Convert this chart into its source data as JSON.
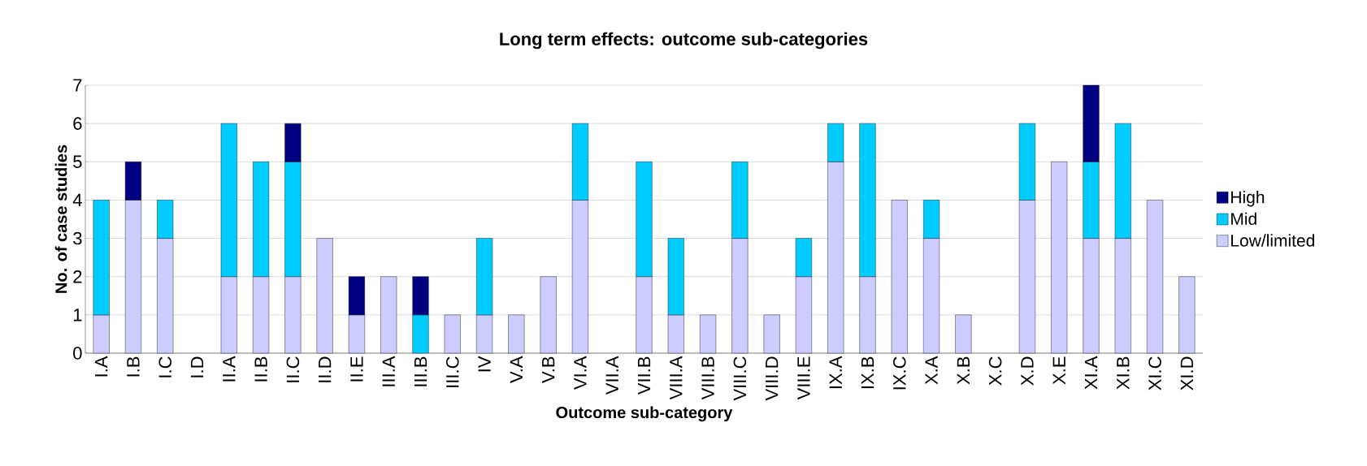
{
  "chart_data": {
    "type": "bar",
    "stacked": true,
    "title": "Long term effects: outcome sub-categories",
    "xlabel": "Outcome sub-category",
    "ylabel": "No. of case studies",
    "categories": [
      "I.A",
      "I.B",
      "I.C",
      "I.D",
      "II.A",
      "II.B",
      "II.C",
      "II.D",
      "II.E",
      "III.A",
      "III.B",
      "III.C",
      "IV",
      "V.A",
      "V.B",
      "VI.A",
      "VII.A",
      "VII.B",
      "VIII.A",
      "VIII.B",
      "VIII.C",
      "VIII.D",
      "VIII.E",
      "IX.A",
      "IX.B",
      "IX.C",
      "X.A",
      "X.B",
      "X.C",
      "X.D",
      "X.E",
      "XI.A",
      "XI.B",
      "XI.C",
      "XI.D"
    ],
    "series": [
      {
        "name": "Low/limited",
        "color": "#ccccff",
        "values": [
          1,
          4,
          3,
          0,
          2,
          2,
          2,
          3,
          1,
          2,
          0,
          1,
          1,
          1,
          2,
          4,
          0,
          2,
          1,
          1,
          3,
          1,
          2,
          5,
          2,
          4,
          3,
          1,
          0,
          4,
          5,
          3,
          3,
          4,
          2
        ]
      },
      {
        "name": "Mid",
        "color": "#00ccff",
        "values": [
          3,
          0,
          1,
          0,
          4,
          3,
          3,
          0,
          0,
          0,
          1,
          0,
          2,
          0,
          0,
          2,
          0,
          3,
          2,
          0,
          2,
          0,
          1,
          1,
          4,
          0,
          1,
          0,
          0,
          2,
          0,
          2,
          3,
          0,
          0
        ]
      },
      {
        "name": "High",
        "color": "#000080",
        "values": [
          0,
          1,
          0,
          0,
          0,
          0,
          1,
          0,
          1,
          0,
          1,
          0,
          0,
          0,
          0,
          0,
          0,
          0,
          0,
          0,
          0,
          0,
          0,
          0,
          0,
          0,
          0,
          0,
          0,
          0,
          0,
          2,
          0,
          0,
          0
        ]
      }
    ],
    "ylim": [
      0,
      7
    ],
    "yticks": [
      0,
      1,
      2,
      3,
      4,
      5,
      6,
      7
    ],
    "grid": "y",
    "legend": "right"
  }
}
